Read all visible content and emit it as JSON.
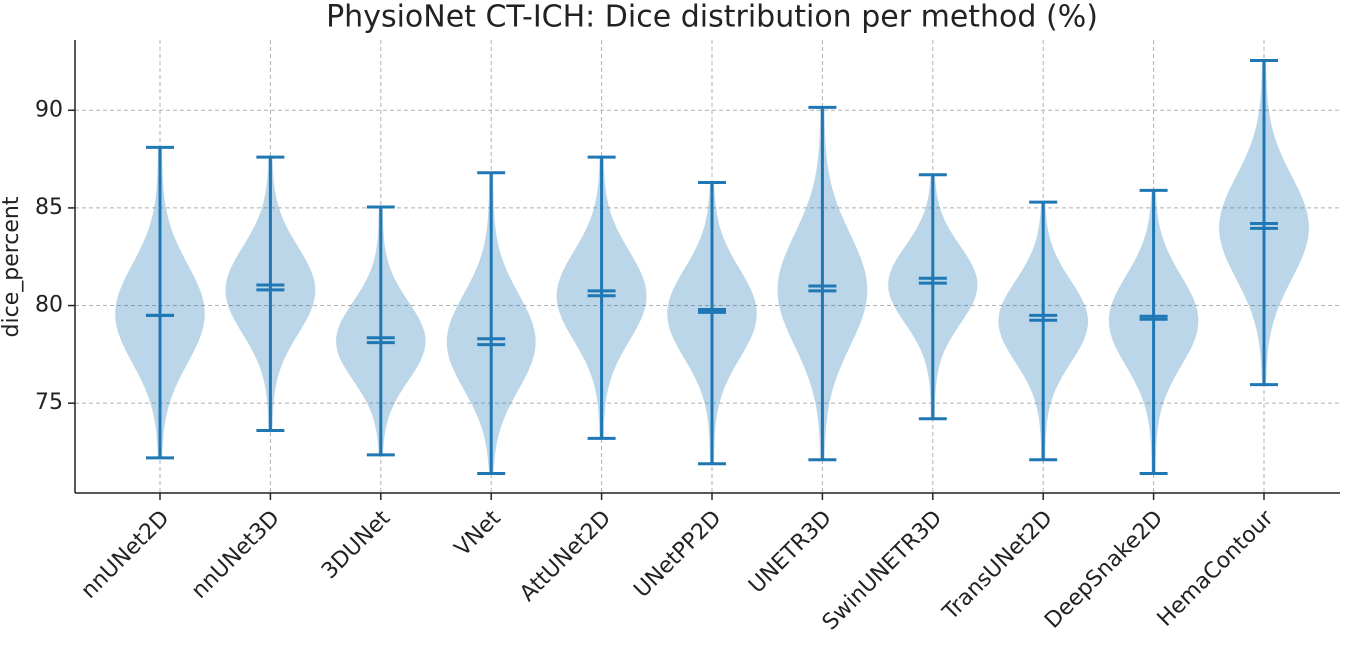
{
  "chart_data": {
    "type": "violin",
    "title": "PhysioNet CT-ICH: Dice distribution per method (%)",
    "y_label": "dice_percent",
    "categories": [
      "nnUNet2D",
      "nnUNet3D",
      "3DUNet",
      "VNet",
      "AttUNet2D",
      "UNetPP2D",
      "UNETR3D",
      "SwinUNETR3D",
      "TransUNet2D",
      "DeepSnake2D",
      "HemaContour"
    ],
    "mins": [
      72.2,
      73.6,
      72.35,
      71.4,
      73.2,
      71.9,
      72.1,
      74.2,
      72.1,
      71.4,
      75.95
    ],
    "maxs": [
      88.1,
      87.6,
      85.05,
      86.8,
      87.6,
      86.3,
      90.15,
      86.7,
      85.3,
      85.9,
      92.55
    ],
    "means": [
      79.5,
      81.05,
      78.35,
      78.3,
      80.75,
      79.8,
      81.0,
      81.4,
      79.5,
      79.45,
      84.2
    ],
    "medians": [
      79.5,
      80.8,
      78.1,
      78.0,
      80.5,
      79.65,
      80.75,
      81.15,
      79.25,
      79.3,
      83.95
    ],
    "color": "#1f77b4",
    "ylim": [
      70.4,
      93.6
    ],
    "yticks": [
      75,
      80,
      85,
      90
    ],
    "grid": true
  }
}
